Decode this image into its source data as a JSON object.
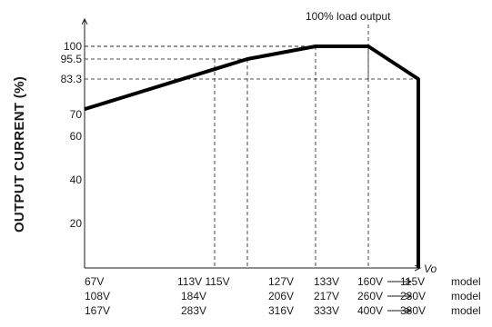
{
  "chart_data": {
    "type": "line",
    "title": "",
    "ylabel": "OUTPUT CURRENT (%)",
    "xlabel": "Vo",
    "annotation": "100% load output",
    "ylim": [
      0,
      110
    ],
    "y_ticks": [
      "100",
      "95.5",
      "83.3",
      "70",
      "60",
      "40",
      "20"
    ],
    "y_tick_values": [
      100,
      95.5,
      83.3,
      70,
      60,
      40,
      20
    ],
    "x_points": [
      0,
      1,
      2,
      3,
      4,
      5
    ],
    "curve": [
      {
        "x": 0,
        "y": 72
      },
      {
        "x": 2,
        "y": 95.5
      },
      {
        "x": 3,
        "y": 100
      },
      {
        "x": 4,
        "y": 100
      },
      {
        "x": 5,
        "y": 83.3
      },
      {
        "x": 5,
        "y": 0
      }
    ],
    "guide_lines": [
      {
        "x": 2,
        "y": 95.5
      },
      {
        "x": 2.2,
        "y": 95.5
      },
      {
        "x": 3,
        "y": 100
      },
      {
        "x": 4,
        "y": 100
      },
      {
        "x": 5,
        "y": 83.3
      }
    ],
    "x_label_rows": [
      {
        "labels": [
          "67V",
          "113V 115V",
          "127V",
          "133V",
          "160V",
          "115V"
        ],
        "model": "model"
      },
      {
        "labels": [
          "108V",
          "184V",
          "206V",
          "217V",
          "260V",
          "230V"
        ],
        "model": "model"
      },
      {
        "labels": [
          "167V",
          "283V",
          "316V",
          "333V",
          "400V",
          "380V"
        ],
        "model": "model"
      }
    ],
    "grid": false
  }
}
